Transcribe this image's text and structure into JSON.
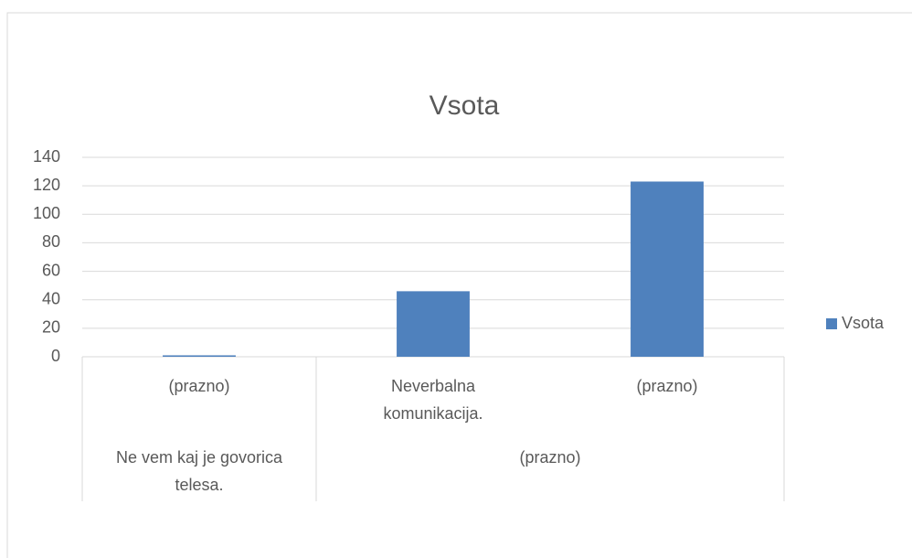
{
  "chart_data": {
    "type": "bar",
    "title": "Vsota",
    "categories": [
      [
        "Ne vem kaj je govorica telesa.",
        "(prazno)"
      ],
      [
        "(prazno)",
        "Neverbalna komunikacija."
      ],
      [
        "(prazno)",
        "(prazno)"
      ]
    ],
    "series": [
      {
        "name": "Vsota",
        "color": "#4f81bd",
        "values": [
          1,
          46,
          123
        ]
      }
    ],
    "ylim": [
      0,
      140
    ],
    "yticks": [
      0,
      20,
      40,
      60,
      80,
      100,
      120,
      140
    ],
    "grid": true,
    "legend": "right"
  }
}
